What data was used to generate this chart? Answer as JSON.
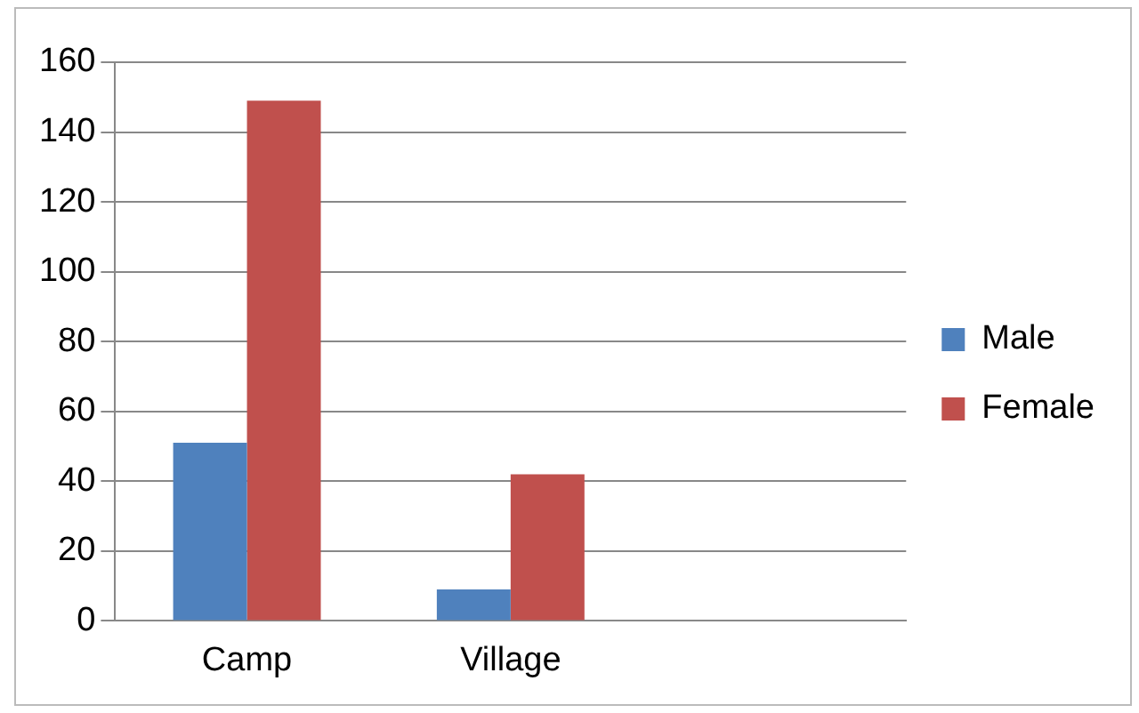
{
  "chart_data": {
    "type": "bar",
    "categories": [
      "Camp",
      "Village",
      null
    ],
    "series": [
      {
        "name": "Male",
        "color": "#4f81bd",
        "values": [
          51,
          9,
          null
        ]
      },
      {
        "name": "Female",
        "color": "#c0504d",
        "values": [
          149,
          42,
          null
        ]
      }
    ],
    "ylim": [
      0,
      160
    ],
    "yticks": [
      0,
      20,
      40,
      60,
      80,
      100,
      120,
      140,
      160
    ],
    "grid": "y",
    "legend": "right"
  }
}
